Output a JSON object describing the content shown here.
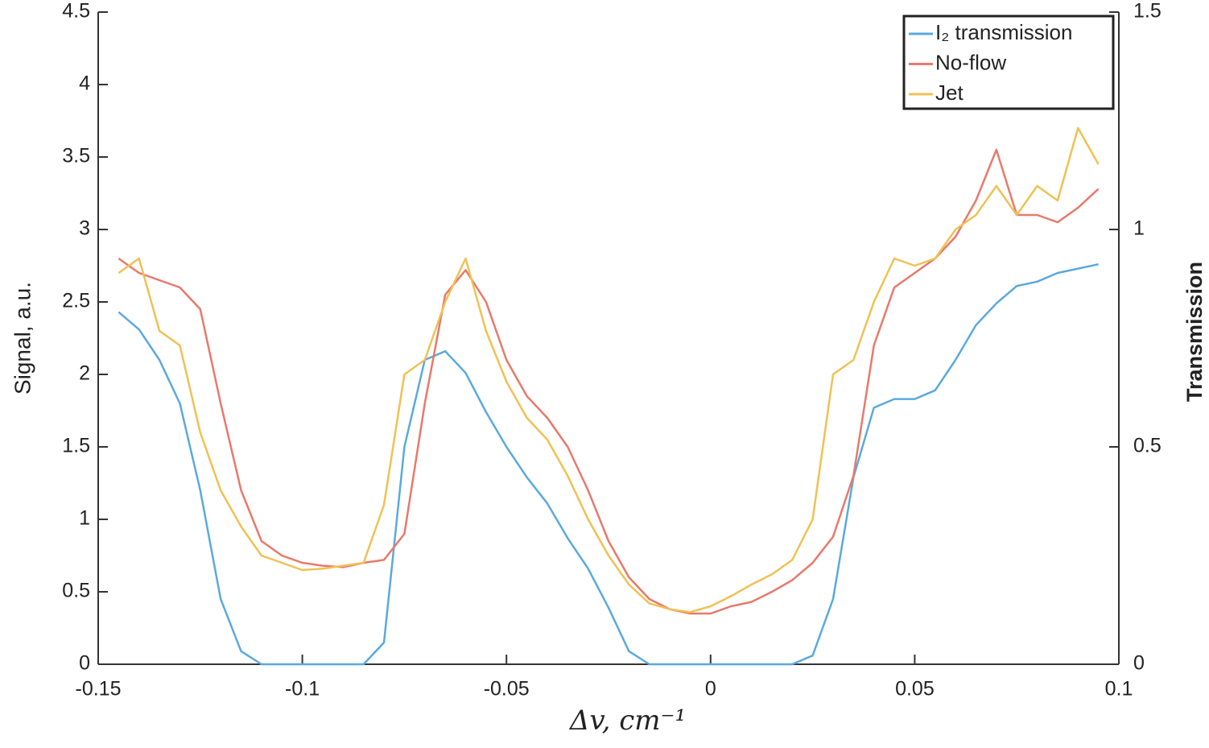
{
  "chart_data": {
    "type": "line",
    "x_label": "Δv, cm⁻¹",
    "y_label": "Signal, a.u.",
    "y2_label": "Transmission",
    "x": [
      -0.145,
      -0.14,
      -0.135,
      -0.13,
      -0.125,
      -0.12,
      -0.115,
      -0.11,
      -0.105,
      -0.1,
      -0.095,
      -0.09,
      -0.085,
      -0.08,
      -0.075,
      -0.07,
      -0.065,
      -0.06,
      -0.055,
      -0.05,
      -0.045,
      -0.04,
      -0.035,
      -0.03,
      -0.025,
      -0.02,
      -0.015,
      -0.01,
      -0.005,
      0,
      0.005,
      0.01,
      0.015,
      0.02,
      0.025,
      0.03,
      0.035,
      0.04,
      0.045,
      0.05,
      0.055,
      0.06,
      0.065,
      0.07,
      0.075,
      0.08,
      0.085,
      0.09,
      0.095
    ],
    "series": [
      {
        "name": "I₂ transmission",
        "color": "#5aa9e0",
        "axis": "y2",
        "values": [
          0.81,
          0.77,
          0.7,
          0.6,
          0.4,
          0.15,
          0.03,
          0,
          0,
          0,
          0,
          0,
          0,
          0.05,
          0.5,
          0.7,
          0.72,
          0.67,
          0.58,
          0.5,
          0.43,
          0.37,
          0.29,
          0.22,
          0.13,
          0.03,
          0,
          0,
          0,
          0,
          0,
          0,
          0,
          0,
          0.02,
          0.15,
          0.43,
          0.59,
          0.61,
          0.61,
          0.63,
          0.7,
          0.78,
          0.83,
          0.87,
          0.88,
          0.9,
          0.91,
          0.92
        ]
      },
      {
        "name": "No-flow",
        "color": "#e8796b",
        "values": [
          2.8,
          2.7,
          2.65,
          2.6,
          2.45,
          1.8,
          1.2,
          0.85,
          0.75,
          0.7,
          0.68,
          0.67,
          0.7,
          0.72,
          0.9,
          1.8,
          2.55,
          2.72,
          2.5,
          2.1,
          1.85,
          1.7,
          1.5,
          1.2,
          0.85,
          0.6,
          0.45,
          0.38,
          0.35,
          0.35,
          0.4,
          0.43,
          0.5,
          0.58,
          0.7,
          0.88,
          1.3,
          2.2,
          2.6,
          2.7,
          2.8,
          2.95,
          3.2,
          3.55,
          3.1,
          3.1,
          3.05,
          3.15,
          3.28
        ]
      },
      {
        "name": "Jet",
        "color": "#f0c154",
        "values": [
          2.7,
          2.8,
          2.3,
          2.2,
          1.6,
          1.2,
          0.95,
          0.75,
          0.7,
          0.65,
          0.66,
          0.68,
          0.7,
          1.1,
          2.0,
          2.1,
          2.5,
          2.8,
          2.3,
          1.95,
          1.7,
          1.55,
          1.3,
          1.0,
          0.75,
          0.55,
          0.42,
          0.38,
          0.36,
          0.4,
          0.47,
          0.55,
          0.62,
          0.72,
          1.0,
          2.0,
          2.1,
          2.5,
          2.8,
          2.75,
          2.8,
          3.0,
          3.1,
          3.3,
          3.1,
          3.3,
          3.2,
          3.7,
          3.45
        ]
      }
    ],
    "xlim": [
      -0.15,
      0.1
    ],
    "xticks": [
      -0.15,
      -0.1,
      -0.05,
      0,
      0.05,
      0.1
    ],
    "ylim": [
      0,
      4.5
    ],
    "yticks": [
      0,
      0.5,
      1,
      1.5,
      2,
      2.5,
      3,
      3.5,
      4,
      4.5
    ],
    "y2lim": [
      0,
      1.5
    ],
    "y2ticks": [
      0,
      0.5,
      1,
      1.5
    ],
    "legend": "top-right"
  }
}
